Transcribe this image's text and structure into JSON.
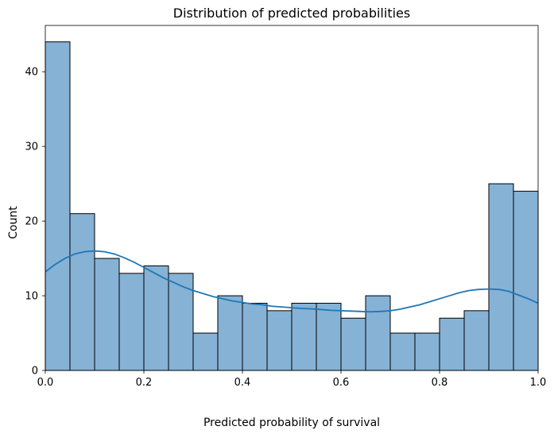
{
  "chart_data": {
    "type": "bar",
    "title": "Distribution of predicted probabilities",
    "xlabel": "Predicted probability of survival",
    "ylabel": "Count",
    "xlim": [
      0,
      1
    ],
    "ylim": [
      0,
      46.2
    ],
    "xticks": [
      0.0,
      0.2,
      0.4,
      0.6,
      0.8,
      1.0
    ],
    "xtick_labels": [
      "0.0",
      "0.2",
      "0.4",
      "0.6",
      "0.8",
      "1.0"
    ],
    "yticks": [
      0,
      10,
      20,
      30,
      40
    ],
    "ytick_labels": [
      "0",
      "10",
      "20",
      "30",
      "40"
    ],
    "bin_edges": [
      0.0,
      0.05,
      0.1,
      0.15,
      0.2,
      0.25,
      0.3,
      0.35,
      0.4,
      0.45,
      0.5,
      0.55,
      0.6,
      0.65,
      0.7,
      0.75,
      0.8,
      0.85,
      0.9,
      0.95,
      1.0
    ],
    "values": [
      44,
      21,
      15,
      13,
      14,
      13,
      5,
      10,
      9,
      8,
      9,
      9,
      7,
      10,
      5,
      5,
      7,
      8,
      25,
      24
    ],
    "kde": {
      "x": [
        0.0,
        0.02,
        0.04,
        0.06,
        0.08,
        0.1,
        0.12,
        0.14,
        0.16,
        0.18,
        0.2,
        0.22,
        0.24,
        0.26,
        0.28,
        0.3,
        0.32,
        0.34,
        0.36,
        0.38,
        0.4,
        0.42,
        0.44,
        0.46,
        0.48,
        0.5,
        0.52,
        0.54,
        0.56,
        0.58,
        0.6,
        0.62,
        0.64,
        0.66,
        0.68,
        0.7,
        0.72,
        0.74,
        0.76,
        0.78,
        0.8,
        0.82,
        0.84,
        0.86,
        0.88,
        0.9,
        0.92,
        0.94,
        0.96,
        0.98,
        1.0
      ],
      "y": [
        13.2,
        14.2,
        15.0,
        15.6,
        15.9,
        16.0,
        15.9,
        15.6,
        15.1,
        14.5,
        13.8,
        13.1,
        12.4,
        11.8,
        11.2,
        10.7,
        10.3,
        9.9,
        9.6,
        9.3,
        9.1,
        8.9,
        8.8,
        8.6,
        8.5,
        8.4,
        8.3,
        8.25,
        8.15,
        8.05,
        8.0,
        7.95,
        7.9,
        7.85,
        7.9,
        8.0,
        8.2,
        8.5,
        8.8,
        9.2,
        9.6,
        10.0,
        10.4,
        10.7,
        10.85,
        10.9,
        10.85,
        10.6,
        10.1,
        9.6,
        9.0
      ]
    },
    "colors": {
      "bar_fill": "#86b2d6",
      "bar_edge": "#000000",
      "kde_line": "#1f77b4"
    },
    "grid": false,
    "legend": "none"
  }
}
